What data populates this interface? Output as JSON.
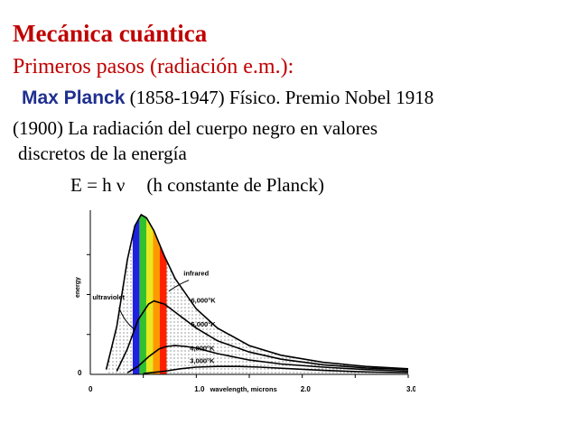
{
  "slide": {
    "title": "Mecánica cuántica",
    "subtitle": "Primeros pasos (radiación e.m.):",
    "person_name": "Max Planck",
    "person_details": "(1858-1947) Físico. Premio Nobel 1918",
    "line1": "(1900) La radiación del cuerpo negro en valores",
    "line2": "discretos de la energía",
    "formula": "E = h ν",
    "formula_note": "(h constante de Planck)"
  },
  "chart_data": {
    "type": "line",
    "xlabel": "wavelength, microns",
    "ylabel": "energy",
    "x_ticks": [
      "0",
      "1.0",
      "2.0",
      "3.0"
    ],
    "y_ticks": [
      "0"
    ],
    "xlim": [
      0,
      3.0
    ],
    "region_labels": [
      "ultraviolet",
      "visible",
      "infrared"
    ],
    "spectrum_colors": [
      "#2020e0",
      "#30c030",
      "#e8e820",
      "#ff9900",
      "#ff2000"
    ],
    "series": [
      {
        "name": "6,000°K",
        "x": [
          0.15,
          0.25,
          0.35,
          0.42,
          0.48,
          0.53,
          0.6,
          0.7,
          0.8,
          1.0,
          1.2,
          1.5,
          1.8,
          2.2,
          2.6,
          3.0
        ],
        "y": [
          0.03,
          0.3,
          0.72,
          0.93,
          1.0,
          0.98,
          0.9,
          0.74,
          0.6,
          0.41,
          0.29,
          0.18,
          0.12,
          0.075,
          0.05,
          0.035
        ]
      },
      {
        "name": "5,000°K",
        "x": [
          0.25,
          0.35,
          0.45,
          0.55,
          0.6,
          0.7,
          0.8,
          1.0,
          1.2,
          1.5,
          1.8,
          2.2,
          2.6,
          3.0
        ],
        "y": [
          0.02,
          0.16,
          0.34,
          0.44,
          0.46,
          0.44,
          0.39,
          0.29,
          0.21,
          0.14,
          0.095,
          0.06,
          0.04,
          0.03
        ]
      },
      {
        "name": "4,000°K",
        "x": [
          0.35,
          0.45,
          0.55,
          0.65,
          0.72,
          0.8,
          0.9,
          1.0,
          1.2,
          1.5,
          1.8,
          2.2,
          2.6,
          3.0
        ],
        "y": [
          0.01,
          0.05,
          0.11,
          0.16,
          0.175,
          0.18,
          0.175,
          0.165,
          0.13,
          0.09,
          0.065,
          0.045,
          0.03,
          0.02
        ]
      },
      {
        "name": "3,000°K",
        "x": [
          0.5,
          0.7,
          0.85,
          1.0,
          1.2,
          1.4,
          1.6,
          1.9,
          2.2,
          2.6,
          3.0
        ],
        "y": [
          0.005,
          0.02,
          0.035,
          0.045,
          0.05,
          0.05,
          0.045,
          0.035,
          0.025,
          0.015,
          0.01
        ]
      }
    ]
  }
}
